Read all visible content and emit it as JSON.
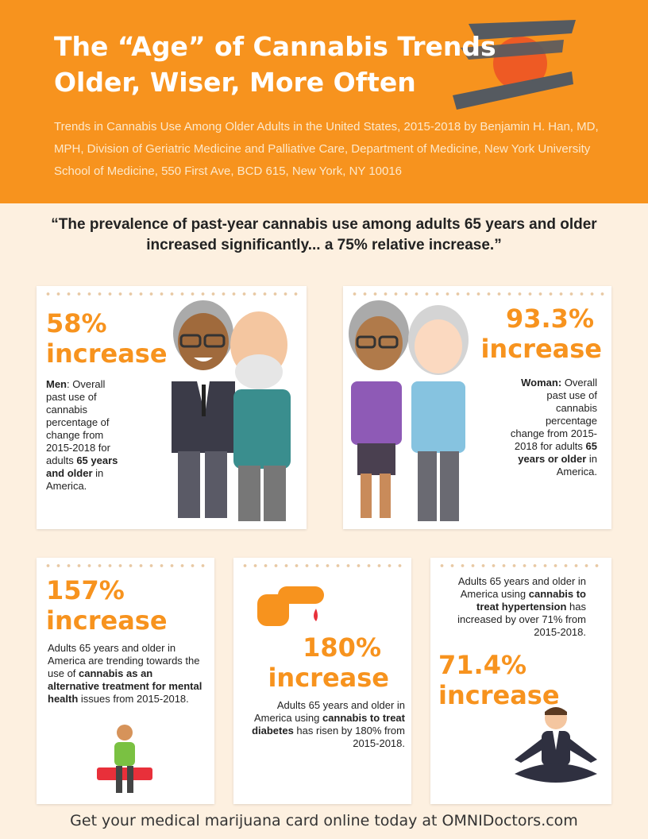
{
  "header": {
    "title_line1": "The “Age” of Cannabis Trends",
    "title_line2": "Older, Wiser, More Often",
    "subtitle": "Trends in Cannabis Use Among Older Adults in the United States, 2015-2018 by Benjamin H. Han, MD, MPH, Division of Geriatric Medicine and Palliative Care, Department of Medicine, New York University School of Medicine, 550 First Ave, BCD 615, New York, NY 10016"
  },
  "quote": "“The prevalence of past-year cannabis use among adults 65 years and older increased significantly... a 75% relative increase.”",
  "cards": {
    "men": {
      "pct": "58%",
      "word": "increase",
      "label": "Men",
      "text1": ":\nOverall past use of cannabis percentage of change from 2015-2018 for adults ",
      "bold": "65 years and older",
      "text2": " in America."
    },
    "women": {
      "pct": "93.3%",
      "word": "increase",
      "label": "Woman:",
      "text1": "Overall past use of cannabis percentage change from 2015-2018 for adults ",
      "bold": "65 years or older",
      "text2": " in America."
    },
    "mental": {
      "pct": "157%",
      "word": "increase",
      "text1": "Adults 65 years and older in America are trending towards the use of ",
      "bold": "cannabis as an alternative treatment for mental health",
      "text2": " issues from 2015-2018."
    },
    "diabetes": {
      "pct": "180%",
      "word": "increase",
      "text1": "Adults 65 years and older in America using ",
      "bold": "cannabis to treat diabetes",
      "text2": " has risen by 180% from 2015-2018."
    },
    "hypertension": {
      "pct": "71.4%",
      "word": "increase",
      "text1": "Adults 65 years and older in America using ",
      "bold": "cannabis to treat hypertension",
      "text2": " has increased by over 71% from 2015-2018."
    }
  },
  "footer": "Get your medical marijuana card online today at OMNIDoctors.com"
}
